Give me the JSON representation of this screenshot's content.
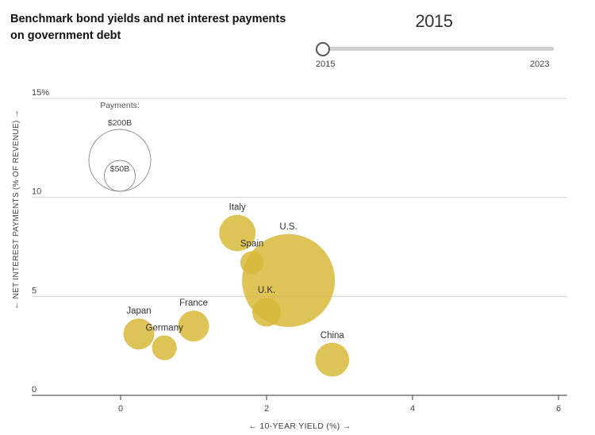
{
  "header": {
    "title": "Benchmark bond yields and net interest payments on government debt",
    "year": "2015"
  },
  "slider": {
    "min_label": "2015",
    "max_label": "2023",
    "value": 2015
  },
  "chart_data": {
    "type": "scatter",
    "title": "Benchmark bond yields and net interest payments on government debt",
    "xlabel": "← 10-YEAR YIELD (%) →",
    "ylabel": "← NET INTEREST PAYMENTS (% OF REVENUE) →",
    "xlim": [
      -1.2,
      6.1
    ],
    "ylim": [
      0,
      15
    ],
    "x_ticks": [
      0,
      2,
      4,
      6
    ],
    "x_tick_labels": [
      "0",
      "2",
      "4",
      "6"
    ],
    "y_ticks": [
      0,
      5,
      10,
      15
    ],
    "y_tick_labels": [
      "0",
      "5",
      "10",
      "15%"
    ],
    "size_measure": "Payments",
    "size_legend": {
      "title": "Payments:",
      "entries": [
        {
          "label": "$200B",
          "value": 200
        },
        {
          "label": "$50B",
          "value": 50
        }
      ]
    },
    "points": [
      {
        "name": "Italy",
        "x": 1.6,
        "y": 8.2,
        "payments": 69
      },
      {
        "name": "Spain",
        "x": 1.8,
        "y": 6.7,
        "payments": 28
      },
      {
        "name": "U.S.",
        "x": 2.3,
        "y": 5.8,
        "payments": 450
      },
      {
        "name": "U.K.",
        "x": 2.0,
        "y": 4.2,
        "payments": 43
      },
      {
        "name": "France",
        "x": 1.0,
        "y": 3.5,
        "payments": 50
      },
      {
        "name": "Japan",
        "x": 0.25,
        "y": 3.1,
        "payments": 50
      },
      {
        "name": "Germany",
        "x": 0.6,
        "y": 2.4,
        "payments": 32
      },
      {
        "name": "China",
        "x": 2.9,
        "y": 1.8,
        "payments": 60
      }
    ],
    "colors": {
      "bubble": "#d8b93a",
      "grid": "#cccccc",
      "axis": "#333333"
    }
  }
}
